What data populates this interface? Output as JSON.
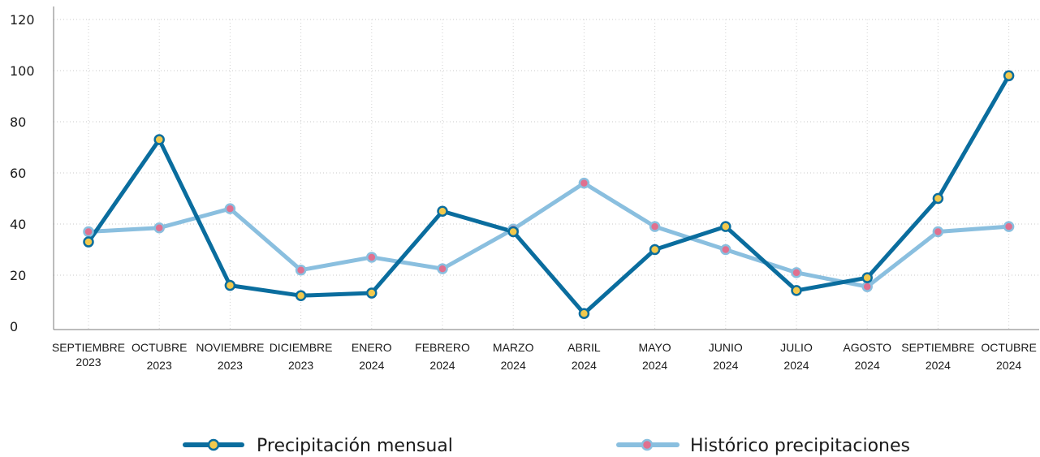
{
  "chart_data": {
    "type": "line",
    "title": "",
    "xlabel": "",
    "ylabel": "",
    "ylim": [
      0,
      120
    ],
    "yticks": [
      0,
      20,
      40,
      60,
      80,
      100,
      120
    ],
    "grid": true,
    "legend_position": "bottom",
    "categories": [
      [
        "SEPTIEMBRE",
        "2023"
      ],
      [
        "OCTUBRE",
        "2023"
      ],
      [
        "NOVIEMBRE",
        "2023"
      ],
      [
        "DICIEMBRE",
        "2023"
      ],
      [
        "ENERO",
        "2024"
      ],
      [
        "FEBRERO",
        "2024"
      ],
      [
        "MARZO",
        "2024"
      ],
      [
        "ABRIL",
        "2024"
      ],
      [
        "MAYO",
        "2024"
      ],
      [
        "JUNIO",
        "2024"
      ],
      [
        "JULIO",
        "2024"
      ],
      [
        "AGOSTO",
        "2024"
      ],
      [
        "SEPTIEMBRE",
        "2024"
      ],
      [
        "OCTUBRE",
        "2024"
      ]
    ],
    "series": [
      {
        "name": "Precipitación mensual",
        "color": "#0a6d9e",
        "marker_color": "#f2c94c",
        "values": [
          33,
          73,
          16,
          12,
          13,
          45,
          37,
          5,
          30,
          39,
          14,
          19,
          50,
          98
        ]
      },
      {
        "name": "Histórico precipitaciones",
        "color": "#8abfdf",
        "marker_color": "#e0708f",
        "values": [
          37,
          38.5,
          46,
          22,
          27,
          22.5,
          38,
          56,
          39,
          30,
          21,
          15.5,
          37,
          39
        ]
      }
    ]
  }
}
